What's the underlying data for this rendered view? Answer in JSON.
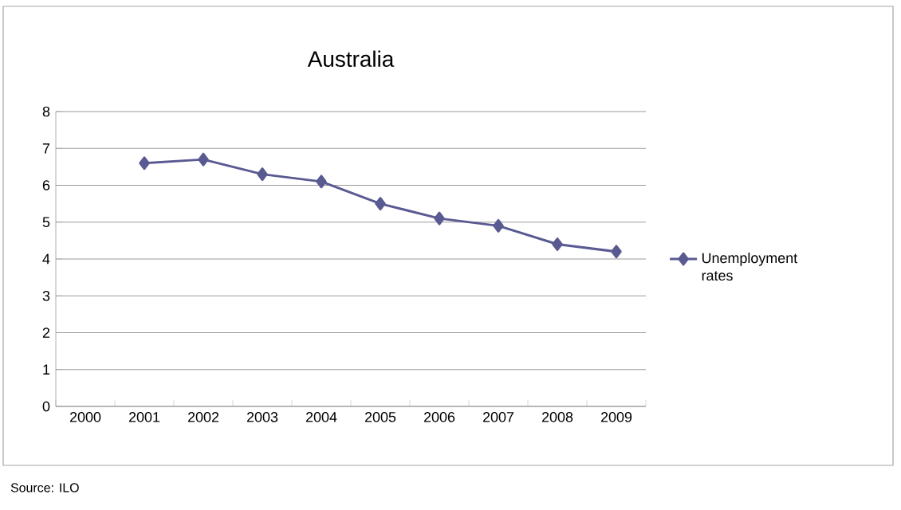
{
  "chart_data": {
    "type": "line",
    "title": "Australia",
    "categories": [
      "2000",
      "2001",
      "2002",
      "2003",
      "2004",
      "2005",
      "2006",
      "2007",
      "2008",
      "2009"
    ],
    "series": [
      {
        "name": "Unemployment rates",
        "color": "#5a5a92",
        "values": [
          null,
          6.6,
          6.7,
          6.3,
          6.1,
          5.5,
          5.1,
          4.9,
          4.4,
          4.2
        ]
      }
    ],
    "ylim": [
      0,
      8
    ],
    "yticks": [
      0,
      1,
      2,
      3,
      4,
      5,
      6,
      7,
      8
    ],
    "grid": "y",
    "legend": "right",
    "marker": "diamond",
    "line_style": "solid",
    "annotations": [
      "Source: ILO"
    ]
  }
}
